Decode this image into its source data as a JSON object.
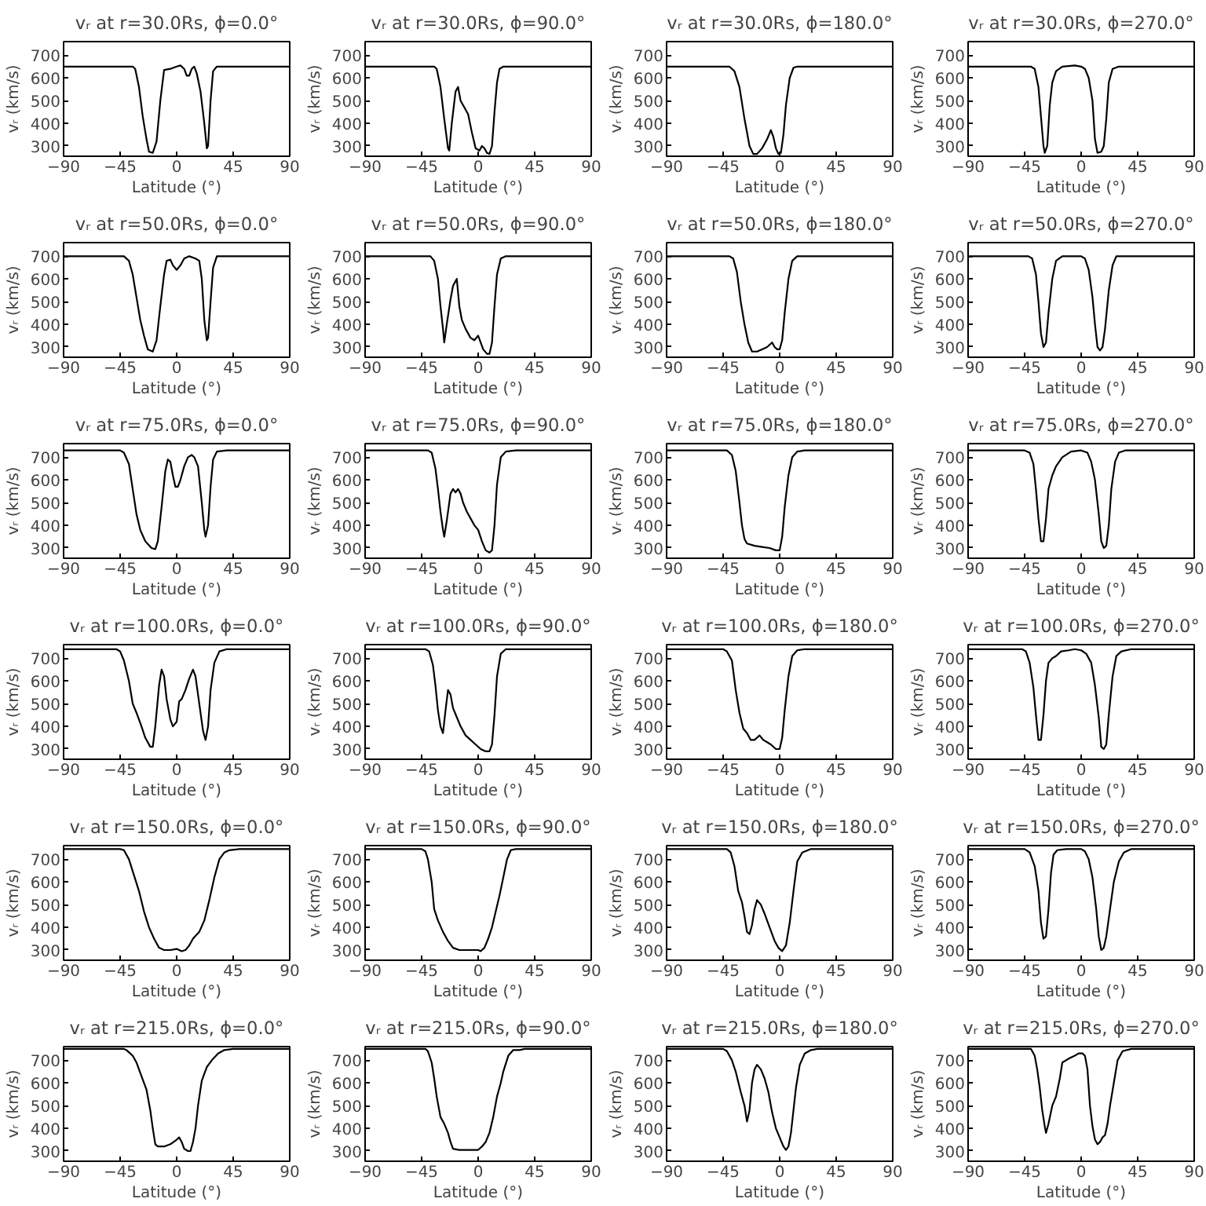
{
  "chart_data": [
    {
      "type": "line",
      "title": "vᵣ at r=30.0Rs, ϕ=0.0°",
      "xlabel": "Latitude (°)",
      "ylabel": "vᵣ (km/s)",
      "xlim": [
        -90,
        90
      ],
      "ylim": [
        255,
        760
      ],
      "xticks": [
        -90,
        -45,
        0,
        45,
        90
      ],
      "yticks": [
        300,
        400,
        500,
        600,
        700
      ],
      "x": [
        -90,
        -35,
        -33,
        -30,
        -27,
        -24,
        -22,
        -19,
        -16,
        -13,
        -10,
        -5,
        0,
        3,
        6,
        8,
        10,
        12,
        14,
        16,
        19,
        22,
        24,
        25,
        27,
        29,
        32,
        90
      ],
      "series": [
        {
          "color": "#000000",
          "values": [
            650,
            650,
            640,
            560,
            430,
            330,
            275,
            270,
            320,
            500,
            635,
            640,
            650,
            655,
            640,
            610,
            610,
            640,
            650,
            620,
            540,
            400,
            290,
            300,
            500,
            630,
            650,
            650
          ]
        }
      ]
    },
    {
      "type": "line",
      "title": "vᵣ at r=30.0Rs, ϕ=90.0°",
      "xlabel": "Latitude (°)",
      "ylabel": "vᵣ (km/s)",
      "xlim": [
        -90,
        90
      ],
      "ylim": [
        255,
        760
      ],
      "xticks": [
        -90,
        -45,
        0,
        45,
        90
      ],
      "yticks": [
        300,
        400,
        500,
        600,
        700
      ],
      "x": [
        -90,
        -35,
        -33,
        -30,
        -27,
        -24,
        -23,
        -21,
        -18,
        -16,
        -14,
        -11,
        -8,
        -5,
        -2,
        1,
        3,
        5,
        7,
        9,
        11,
        13,
        15,
        17,
        20,
        90
      ],
      "series": [
        {
          "color": "#000000",
          "values": [
            650,
            650,
            640,
            560,
            420,
            290,
            280,
            400,
            540,
            560,
            500,
            470,
            440,
            360,
            290,
            280,
            300,
            290,
            270,
            265,
            300,
            450,
            580,
            640,
            650,
            650
          ]
        }
      ]
    },
    {
      "type": "line",
      "title": "vᵣ at r=30.0Rs, ϕ=180.0°",
      "xlabel": "Latitude (°)",
      "ylabel": "vᵣ (km/s)",
      "xlim": [
        -90,
        90
      ],
      "ylim": [
        255,
        760
      ],
      "xticks": [
        -90,
        -45,
        0,
        45,
        90
      ],
      "yticks": [
        300,
        400,
        500,
        600,
        700
      ],
      "x": [
        -90,
        -40,
        -36,
        -32,
        -28,
        -24,
        -21,
        -18,
        -14,
        -10,
        -7,
        -5,
        -3,
        -1,
        1,
        3,
        5,
        8,
        11,
        14,
        90
      ],
      "series": [
        {
          "color": "#000000",
          "values": [
            650,
            650,
            630,
            560,
            420,
            300,
            265,
            265,
            290,
            330,
            370,
            340,
            290,
            265,
            270,
            350,
            480,
            600,
            645,
            650,
            650
          ]
        }
      ]
    },
    {
      "type": "line",
      "title": "vᵣ at r=30.0Rs, ϕ=270.0°",
      "xlabel": "Latitude (°)",
      "ylabel": "vᵣ (km/s)",
      "xlim": [
        -90,
        90
      ],
      "ylim": [
        255,
        760
      ],
      "xticks": [
        -90,
        -45,
        0,
        45,
        90
      ],
      "yticks": [
        300,
        400,
        500,
        600,
        700
      ],
      "x": [
        -90,
        -40,
        -37,
        -34,
        -32,
        -30,
        -29,
        -27,
        -25,
        -23,
        -20,
        -15,
        -5,
        0,
        3,
        6,
        9,
        11,
        13,
        16,
        18,
        20,
        22,
        25,
        30,
        90
      ],
      "series": [
        {
          "color": "#000000",
          "values": [
            650,
            650,
            640,
            560,
            430,
            300,
            270,
            300,
            480,
            580,
            630,
            650,
            655,
            650,
            640,
            600,
            500,
            330,
            270,
            275,
            300,
            420,
            580,
            640,
            650,
            650
          ]
        }
      ]
    },
    {
      "type": "line",
      "title": "vᵣ at r=50.0Rs, ϕ=0.0°",
      "xlabel": "Latitude (°)",
      "ylabel": "vᵣ (km/s)",
      "xlim": [
        -90,
        90
      ],
      "ylim": [
        255,
        760
      ],
      "xticks": [
        -90,
        -45,
        0,
        45,
        90
      ],
      "yticks": [
        300,
        400,
        500,
        600,
        700
      ],
      "x": [
        -90,
        -42,
        -38,
        -35,
        -32,
        -29,
        -26,
        -23,
        -19,
        -16,
        -13,
        -10,
        -8,
        -5,
        -3,
        0,
        3,
        6,
        10,
        15,
        18,
        20,
        22,
        24,
        25,
        27,
        29,
        32,
        90
      ],
      "series": [
        {
          "color": "#000000",
          "values": [
            700,
            700,
            680,
            620,
            520,
            420,
            350,
            290,
            280,
            330,
            480,
            620,
            680,
            685,
            660,
            640,
            660,
            690,
            700,
            690,
            680,
            600,
            420,
            330,
            340,
            500,
            650,
            700,
            700
          ]
        }
      ]
    },
    {
      "type": "line",
      "title": "vᵣ at r=50.0Rs, ϕ=90.0°",
      "xlabel": "Latitude (°)",
      "ylabel": "vᵣ (km/s)",
      "xlim": [
        -90,
        90
      ],
      "ylim": [
        255,
        760
      ],
      "xticks": [
        -90,
        -45,
        0,
        45,
        90
      ],
      "yticks": [
        300,
        400,
        500,
        600,
        700
      ],
      "x": [
        -90,
        -38,
        -35,
        -32,
        -30,
        -28,
        -27,
        -25,
        -22,
        -20,
        -18,
        -17,
        -15,
        -13,
        -10,
        -6,
        -3,
        0,
        2,
        4,
        7,
        9,
        11,
        13,
        15,
        18,
        22,
        90
      ],
      "series": [
        {
          "color": "#000000",
          "values": [
            700,
            700,
            680,
            600,
            480,
            380,
            320,
            400,
            510,
            570,
            590,
            600,
            480,
            420,
            380,
            340,
            330,
            350,
            320,
            290,
            270,
            270,
            320,
            480,
            620,
            690,
            700,
            700
          ]
        }
      ]
    },
    {
      "type": "line",
      "title": "vᵣ at r=50.0Rs, ϕ=180.0°",
      "xlabel": "Latitude (°)",
      "ylabel": "vᵣ (km/s)",
      "xlim": [
        -90,
        90
      ],
      "ylim": [
        255,
        760
      ],
      "xticks": [
        -90,
        -45,
        0,
        45,
        90
      ],
      "yticks": [
        300,
        400,
        500,
        600,
        700
      ],
      "x": [
        -90,
        -40,
        -37,
        -34,
        -31,
        -28,
        -25,
        -22,
        -18,
        -14,
        -10,
        -6,
        -4,
        -2,
        0,
        2,
        4,
        7,
        10,
        14,
        90
      ],
      "series": [
        {
          "color": "#000000",
          "values": [
            700,
            700,
            690,
            630,
            500,
            400,
            320,
            280,
            280,
            290,
            300,
            320,
            300,
            290,
            290,
            330,
            450,
            600,
            680,
            700,
            700
          ]
        }
      ]
    },
    {
      "type": "line",
      "title": "vᵣ at r=50.0Rs, ϕ=270.0°",
      "xlabel": "Latitude (°)",
      "ylabel": "vᵣ (km/s)",
      "xlim": [
        -90,
        90
      ],
      "ylim": [
        255,
        760
      ],
      "xticks": [
        -90,
        -45,
        0,
        45,
        90
      ],
      "yticks": [
        300,
        400,
        500,
        600,
        700
      ],
      "x": [
        -90,
        -42,
        -39,
        -36,
        -34,
        -32,
        -30,
        -28,
        -26,
        -23,
        -20,
        -15,
        -5,
        0,
        3,
        6,
        9,
        11,
        13,
        15,
        17,
        19,
        22,
        25,
        28,
        90
      ],
      "series": [
        {
          "color": "#000000",
          "values": [
            700,
            700,
            690,
            620,
            500,
            360,
            300,
            320,
            450,
            600,
            680,
            700,
            700,
            700,
            690,
            640,
            520,
            400,
            300,
            285,
            300,
            380,
            550,
            660,
            700,
            700
          ]
        }
      ]
    },
    {
      "type": "line",
      "title": "vᵣ at r=75.0Rs, ϕ=0.0°",
      "xlabel": "Latitude (°)",
      "ylabel": "vᵣ (km/s)",
      "xlim": [
        -90,
        90
      ],
      "ylim": [
        255,
        760
      ],
      "xticks": [
        -90,
        -45,
        0,
        45,
        90
      ],
      "yticks": [
        300,
        400,
        500,
        600,
        700
      ],
      "x": [
        -90,
        -45,
        -42,
        -38,
        -35,
        -32,
        -29,
        -25,
        -20,
        -17,
        -15,
        -12,
        -9,
        -7,
        -5,
        -3,
        -1,
        1,
        3,
        6,
        9,
        12,
        14,
        17,
        20,
        22,
        23,
        25,
        27,
        29,
        32,
        40,
        90
      ],
      "series": [
        {
          "color": "#000000",
          "values": [
            730,
            730,
            720,
            670,
            560,
            450,
            380,
            330,
            300,
            295,
            330,
            480,
            640,
            690,
            680,
            620,
            570,
            570,
            600,
            660,
            700,
            710,
            700,
            660,
            500,
            380,
            350,
            400,
            570,
            690,
            725,
            730,
            730
          ]
        }
      ]
    },
    {
      "type": "line",
      "title": "vᵣ at r=75.0Rs, ϕ=90.0°",
      "xlabel": "Latitude (°)",
      "ylabel": "vᵣ (km/s)",
      "xlim": [
        -90,
        90
      ],
      "ylim": [
        255,
        760
      ],
      "xticks": [
        -90,
        -45,
        0,
        45,
        90
      ],
      "yticks": [
        300,
        400,
        500,
        600,
        700
      ],
      "x": [
        -90,
        -40,
        -37,
        -34,
        -32,
        -30,
        -28,
        -27,
        -25,
        -22,
        -20,
        -18,
        -16,
        -14,
        -12,
        -9,
        -6,
        -3,
        0,
        3,
        6,
        9,
        11,
        13,
        15,
        18,
        22,
        30,
        90
      ],
      "series": [
        {
          "color": "#000000",
          "values": [
            730,
            730,
            720,
            650,
            560,
            460,
            380,
            350,
            420,
            540,
            560,
            545,
            560,
            540,
            500,
            460,
            430,
            400,
            380,
            330,
            290,
            280,
            290,
            400,
            580,
            700,
            725,
            730,
            730
          ]
        }
      ]
    },
    {
      "type": "line",
      "title": "vᵣ at r=75.0Rs, ϕ=180.0°",
      "xlabel": "Latitude (°)",
      "ylabel": "vᵣ (km/s)",
      "xlim": [
        -90,
        90
      ],
      "ylim": [
        255,
        760
      ],
      "xticks": [
        -90,
        -45,
        0,
        45,
        90
      ],
      "yticks": [
        300,
        400,
        500,
        600,
        700
      ],
      "x": [
        -90,
        -42,
        -38,
        -35,
        -32,
        -30,
        -28,
        -26,
        -20,
        -14,
        -8,
        -3,
        0,
        2,
        4,
        7,
        10,
        14,
        20,
        90
      ],
      "series": [
        {
          "color": "#000000",
          "values": [
            730,
            730,
            710,
            640,
            500,
            400,
            340,
            320,
            310,
            305,
            300,
            290,
            290,
            350,
            480,
            620,
            700,
            725,
            730,
            730
          ]
        }
      ]
    },
    {
      "type": "line",
      "title": "vᵣ at r=75.0Rs, ϕ=270.0°",
      "xlabel": "Latitude (°)",
      "ylabel": "vᵣ (km/s)",
      "xlim": [
        -90,
        90
      ],
      "ylim": [
        255,
        760
      ],
      "xticks": [
        -90,
        -45,
        0,
        45,
        90
      ],
      "yticks": [
        300,
        400,
        500,
        600,
        700
      ],
      "x": [
        -90,
        -45,
        -41,
        -38,
        -36,
        -34,
        -32,
        -30,
        -28,
        -26,
        -23,
        -20,
        -15,
        -8,
        0,
        5,
        8,
        11,
        14,
        16,
        18,
        20,
        22,
        24,
        27,
        30,
        35,
        90
      ],
      "series": [
        {
          "color": "#000000",
          "values": [
            730,
            730,
            720,
            670,
            560,
            430,
            330,
            330,
            430,
            560,
            620,
            660,
            700,
            725,
            730,
            720,
            680,
            600,
            450,
            330,
            300,
            310,
            400,
            560,
            680,
            720,
            730,
            730
          ]
        }
      ]
    },
    {
      "type": "line",
      "title": "vᵣ at r=100.0Rs, ϕ=0.0°",
      "xlabel": "Latitude (°)",
      "ylabel": "vᵣ (km/s)",
      "xlim": [
        -90,
        90
      ],
      "ylim": [
        255,
        760
      ],
      "xticks": [
        -90,
        -45,
        0,
        45,
        90
      ],
      "yticks": [
        300,
        400,
        500,
        600,
        700
      ],
      "x": [
        -90,
        -48,
        -45,
        -42,
        -38,
        -35,
        -32,
        -28,
        -25,
        -21,
        -19,
        -17,
        -14,
        -12,
        -10,
        -8,
        -5,
        -3,
        0,
        2,
        4,
        7,
        10,
        13,
        15,
        18,
        21,
        23,
        25,
        27,
        30,
        34,
        40,
        90
      ],
      "series": [
        {
          "color": "#000000",
          "values": [
            740,
            740,
            730,
            690,
            600,
            500,
            460,
            400,
            350,
            310,
            310,
            400,
            580,
            650,
            620,
            520,
            430,
            400,
            420,
            510,
            520,
            560,
            610,
            650,
            620,
            500,
            380,
            340,
            400,
            560,
            680,
            730,
            740,
            740
          ]
        }
      ]
    },
    {
      "type": "line",
      "title": "vᵣ at r=100.0Rs, ϕ=90.0°",
      "xlabel": "Latitude (°)",
      "ylabel": "vᵣ (km/s)",
      "xlim": [
        -90,
        90
      ],
      "ylim": [
        255,
        760
      ],
      "xticks": [
        -90,
        -45,
        0,
        45,
        90
      ],
      "yticks": [
        300,
        400,
        500,
        600,
        700
      ],
      "x": [
        -90,
        -42,
        -39,
        -36,
        -34,
        -32,
        -30,
        -28,
        -26,
        -24,
        -22,
        -20,
        -17,
        -14,
        -10,
        -6,
        -2,
        2,
        6,
        9,
        11,
        13,
        15,
        18,
        22,
        90
      ],
      "series": [
        {
          "color": "#000000",
          "values": [
            740,
            740,
            730,
            670,
            580,
            470,
            400,
            370,
            470,
            560,
            540,
            480,
            440,
            400,
            360,
            340,
            320,
            300,
            290,
            290,
            320,
            450,
            620,
            720,
            740,
            740
          ]
        }
      ]
    },
    {
      "type": "line",
      "title": "vᵣ at r=100.0Rs, ϕ=180.0°",
      "xlabel": "Latitude (°)",
      "ylabel": "vᵣ (km/s)",
      "xlim": [
        -90,
        90
      ],
      "ylim": [
        255,
        760
      ],
      "xticks": [
        -90,
        -45,
        0,
        45,
        90
      ],
      "yticks": [
        300,
        400,
        500,
        600,
        700
      ],
      "x": [
        -90,
        -45,
        -42,
        -38,
        -35,
        -32,
        -29,
        -26,
        -23,
        -20,
        -18,
        -16,
        -13,
        -10,
        -7,
        -3,
        0,
        2,
        4,
        7,
        10,
        14,
        20,
        90
      ],
      "series": [
        {
          "color": "#000000",
          "values": [
            740,
            740,
            730,
            690,
            560,
            460,
            390,
            370,
            340,
            340,
            350,
            360,
            340,
            330,
            320,
            300,
            300,
            350,
            470,
            620,
            710,
            735,
            740,
            740
          ]
        }
      ]
    },
    {
      "type": "line",
      "title": "vᵣ at r=100.0Rs, ϕ=270.0°",
      "xlabel": "Latitude (°)",
      "ylabel": "vᵣ (km/s)",
      "xlim": [
        -90,
        90
      ],
      "ylim": [
        255,
        760
      ],
      "xticks": [
        -90,
        -45,
        0,
        45,
        90
      ],
      "yticks": [
        300,
        400,
        500,
        600,
        700
      ],
      "x": [
        -90,
        -47,
        -44,
        -41,
        -38,
        -36,
        -34,
        -32,
        -30,
        -28,
        -26,
        -23,
        -20,
        -16,
        -10,
        -5,
        0,
        4,
        8,
        11,
        14,
        16,
        18,
        20,
        22,
        25,
        28,
        32,
        40,
        90
      ],
      "series": [
        {
          "color": "#000000",
          "values": [
            740,
            740,
            730,
            680,
            570,
            450,
            340,
            340,
            450,
            600,
            680,
            700,
            710,
            730,
            735,
            740,
            735,
            720,
            680,
            580,
            440,
            310,
            300,
            320,
            450,
            620,
            710,
            730,
            740,
            740
          ]
        }
      ]
    },
    {
      "type": "line",
      "title": "vᵣ at r=150.0Rs, ϕ=0.0°",
      "xlabel": "Latitude (°)",
      "ylabel": "vᵣ (km/s)",
      "xlim": [
        -90,
        90
      ],
      "ylim": [
        255,
        760
      ],
      "xticks": [
        -90,
        -45,
        0,
        45,
        90
      ],
      "yticks": [
        300,
        400,
        500,
        600,
        700
      ],
      "x": [
        -90,
        -45,
        -42,
        -38,
        -34,
        -30,
        -26,
        -22,
        -18,
        -14,
        -10,
        -5,
        0,
        2,
        4,
        7,
        10,
        13,
        18,
        22,
        26,
        30,
        34,
        38,
        42,
        50,
        90
      ],
      "series": [
        {
          "color": "#000000",
          "values": [
            745,
            745,
            740,
            700,
            630,
            560,
            470,
            400,
            350,
            310,
            300,
            300,
            305,
            300,
            295,
            300,
            320,
            350,
            380,
            430,
            520,
            620,
            700,
            730,
            740,
            745,
            745
          ]
        }
      ]
    },
    {
      "type": "line",
      "title": "vᵣ at r=150.0Rs, ϕ=90.0°",
      "xlabel": "Latitude (°)",
      "ylabel": "vᵣ (km/s)",
      "xlim": [
        -90,
        90
      ],
      "ylim": [
        255,
        760
      ],
      "xticks": [
        -90,
        -45,
        0,
        45,
        90
      ],
      "yticks": [
        300,
        400,
        500,
        600,
        700
      ],
      "x": [
        -90,
        -45,
        -42,
        -40,
        -37,
        -35,
        -32,
        -28,
        -24,
        -20,
        -15,
        -10,
        -5,
        0,
        2,
        5,
        8,
        11,
        14,
        17,
        20,
        23,
        26,
        30,
        90
      ],
      "series": [
        {
          "color": "#000000",
          "values": [
            745,
            745,
            735,
            700,
            600,
            480,
            430,
            380,
            340,
            310,
            300,
            300,
            300,
            300,
            295,
            310,
            350,
            400,
            470,
            540,
            620,
            700,
            740,
            745,
            745
          ]
        }
      ]
    },
    {
      "type": "line",
      "title": "vᵣ at r=150.0Rs, ϕ=180.0°",
      "xlabel": "Latitude (°)",
      "ylabel": "vᵣ (km/s)",
      "xlim": [
        -90,
        90
      ],
      "ylim": [
        255,
        760
      ],
      "xticks": [
        -90,
        -45,
        0,
        45,
        90
      ],
      "yticks": [
        300,
        400,
        500,
        600,
        700
      ],
      "x": [
        -90,
        -42,
        -39,
        -36,
        -33,
        -30,
        -28,
        -26,
        -24,
        -22,
        -20,
        -18,
        -15,
        -12,
        -8,
        -4,
        -1,
        2,
        5,
        8,
        11,
        14,
        18,
        25,
        90
      ],
      "series": [
        {
          "color": "#000000",
          "values": [
            745,
            745,
            730,
            670,
            560,
            510,
            450,
            380,
            370,
            410,
            480,
            520,
            500,
            460,
            400,
            340,
            310,
            295,
            320,
            420,
            560,
            690,
            730,
            745,
            745
          ]
        }
      ]
    },
    {
      "type": "line",
      "title": "vᵣ at r=150.0Rs, ϕ=270.0°",
      "xlabel": "Latitude (°)",
      "ylabel": "vᵣ (km/s)",
      "xlim": [
        -90,
        90
      ],
      "ylim": [
        255,
        760
      ],
      "xticks": [
        -90,
        -45,
        0,
        45,
        90
      ],
      "yticks": [
        300,
        400,
        500,
        600,
        700
      ],
      "x": [
        -90,
        -45,
        -41,
        -37,
        -34,
        -32,
        -30,
        -28,
        -26,
        -24,
        -22,
        -19,
        -12,
        -5,
        0,
        3,
        6,
        9,
        12,
        14,
        16,
        18,
        20,
        23,
        26,
        30,
        34,
        40,
        90
      ],
      "series": [
        {
          "color": "#000000",
          "values": [
            745,
            745,
            730,
            670,
            560,
            420,
            350,
            360,
            480,
            640,
            720,
            740,
            745,
            745,
            745,
            735,
            700,
            620,
            480,
            360,
            300,
            310,
            360,
            480,
            600,
            690,
            730,
            745,
            745
          ]
        }
      ]
    },
    {
      "type": "line",
      "title": "vᵣ at r=215.0Rs, ϕ=0.0°",
      "xlabel": "Latitude (°)",
      "ylabel": "vᵣ (km/s)",
      "xlim": [
        -90,
        90
      ],
      "ylim": [
        255,
        760
      ],
      "xticks": [
        -90,
        -45,
        0,
        45,
        90
      ],
      "yticks": [
        300,
        400,
        500,
        600,
        700
      ],
      "x": [
        -90,
        -42,
        -40,
        -37,
        -35,
        -32,
        -28,
        -24,
        -21,
        -19,
        -17,
        -15,
        -10,
        -5,
        0,
        2,
        4,
        6,
        9,
        11,
        13,
        15,
        17,
        20,
        24,
        28,
        33,
        38,
        45,
        90
      ],
      "series": [
        {
          "color": "#000000",
          "values": [
            750,
            750,
            745,
            730,
            720,
            690,
            630,
            570,
            480,
            400,
            330,
            320,
            320,
            330,
            350,
            360,
            340,
            310,
            300,
            300,
            340,
            400,
            500,
            610,
            670,
            700,
            730,
            745,
            750,
            750
          ]
        }
      ]
    },
    {
      "type": "line",
      "title": "vᵣ at r=215.0Rs, ϕ=90.0°",
      "xlabel": "Latitude (°)",
      "ylabel": "vᵣ (km/s)",
      "xlim": [
        -90,
        90
      ],
      "ylim": [
        255,
        760
      ],
      "xticks": [
        -90,
        -45,
        0,
        45,
        90
      ],
      "yticks": [
        300,
        400,
        500,
        600,
        700
      ],
      "x": [
        -90,
        -42,
        -40,
        -37,
        -35,
        -33,
        -30,
        -27,
        -24,
        -22,
        -20,
        -15,
        -10,
        -5,
        0,
        3,
        6,
        9,
        12,
        15,
        18,
        20,
        24,
        28,
        33,
        37,
        90
      ],
      "series": [
        {
          "color": "#000000",
          "values": [
            750,
            750,
            740,
            690,
            620,
            540,
            450,
            420,
            380,
            340,
            310,
            305,
            305,
            305,
            305,
            320,
            340,
            380,
            450,
            540,
            600,
            650,
            720,
            745,
            745,
            750,
            750
          ]
        }
      ]
    },
    {
      "type": "line",
      "title": "vᵣ at r=215.0Rs, ϕ=180.0°",
      "xlabel": "Latitude (°)",
      "ylabel": "vᵣ (km/s)",
      "xlim": [
        -90,
        90
      ],
      "ylim": [
        255,
        760
      ],
      "xticks": [
        -90,
        -45,
        0,
        45,
        90
      ],
      "yticks": [
        300,
        400,
        500,
        600,
        700
      ],
      "x": [
        -90,
        -45,
        -42,
        -38,
        -35,
        -31,
        -28,
        -26,
        -24,
        -22,
        -20,
        -18,
        -15,
        -12,
        -9,
        -6,
        -3,
        0,
        3,
        5,
        7,
        9,
        11,
        13,
        16,
        20,
        25,
        30,
        90
      ],
      "series": [
        {
          "color": "#000000",
          "values": [
            750,
            750,
            740,
            700,
            650,
            560,
            500,
            430,
            480,
            600,
            660,
            680,
            660,
            620,
            560,
            470,
            400,
            360,
            320,
            305,
            320,
            380,
            480,
            580,
            680,
            730,
            745,
            750,
            750
          ]
        }
      ]
    },
    {
      "type": "line",
      "title": "vᵣ at r=215.0Rs, ϕ=270.0°",
      "xlabel": "Latitude (°)",
      "ylabel": "vᵣ (km/s)",
      "xlim": [
        -90,
        90
      ],
      "ylim": [
        255,
        760
      ],
      "xticks": [
        -90,
        -45,
        0,
        45,
        90
      ],
      "yticks": [
        300,
        400,
        500,
        600,
        700
      ],
      "x": [
        -90,
        -40,
        -37,
        -35,
        -33,
        -31,
        -29,
        -28,
        -26,
        -23,
        -20,
        -17,
        -15,
        -12,
        -9,
        -5,
        -2,
        1,
        3,
        5,
        7,
        9,
        11,
        13,
        15,
        17,
        19,
        21,
        23,
        26,
        29,
        33,
        40,
        90
      ],
      "series": [
        {
          "color": "#000000",
          "values": [
            750,
            750,
            720,
            660,
            580,
            480,
            410,
            380,
            420,
            500,
            540,
            620,
            690,
            700,
            710,
            720,
            730,
            730,
            720,
            660,
            500,
            410,
            350,
            330,
            340,
            360,
            370,
            420,
            500,
            600,
            700,
            740,
            750,
            750
          ]
        }
      ]
    }
  ]
}
